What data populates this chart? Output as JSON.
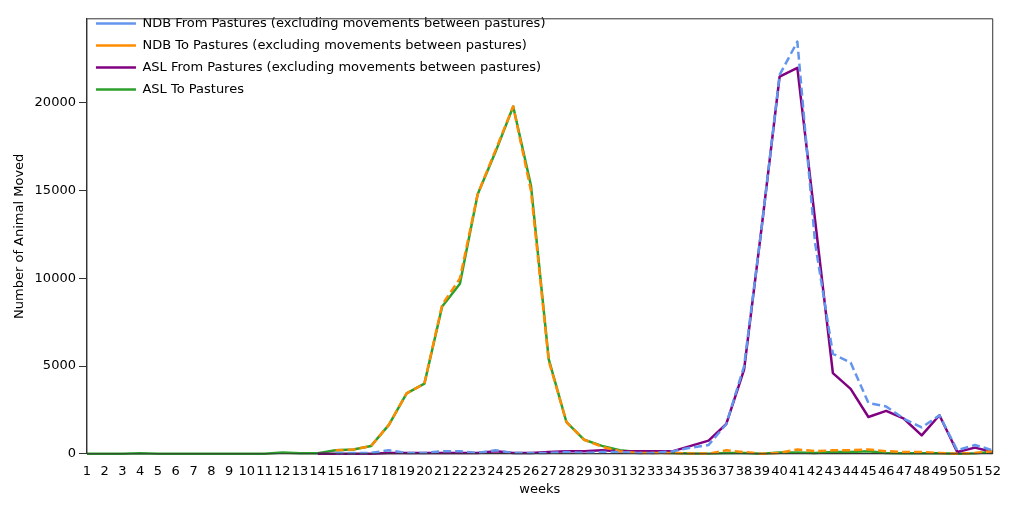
{
  "chart_data": {
    "type": "line",
    "xlabel": "weeks",
    "ylabel": "Number of Animal Moved",
    "x": [
      1,
      2,
      3,
      4,
      5,
      6,
      7,
      8,
      9,
      10,
      11,
      12,
      13,
      14,
      15,
      16,
      17,
      18,
      19,
      20,
      21,
      22,
      23,
      24,
      25,
      26,
      27,
      28,
      29,
      30,
      31,
      32,
      33,
      34,
      35,
      36,
      37,
      38,
      39,
      40,
      41,
      42,
      43,
      44,
      45,
      46,
      47,
      48,
      49,
      50,
      51,
      52
    ],
    "xlim": [
      1,
      52
    ],
    "xticks": [
      1,
      2,
      3,
      4,
      5,
      6,
      7,
      8,
      9,
      10,
      11,
      12,
      13,
      14,
      15,
      16,
      17,
      18,
      19,
      20,
      21,
      22,
      23,
      24,
      25,
      26,
      27,
      28,
      29,
      30,
      31,
      32,
      33,
      34,
      35,
      36,
      37,
      38,
      39,
      40,
      41,
      42,
      43,
      44,
      45,
      46,
      47,
      48,
      49,
      50,
      51,
      52
    ],
    "ylim": [
      0,
      24800
    ],
    "yticks": [
      0,
      5000,
      10000,
      15000,
      20000
    ],
    "grid": false,
    "legend": "top left",
    "series": [
      {
        "name": "NDB From Pastures (excluding movements between pastures)",
        "color": "#6495ed",
        "line_style": "dashed",
        "values": [
          null,
          null,
          null,
          null,
          null,
          null,
          null,
          null,
          null,
          null,
          null,
          null,
          null,
          null,
          50,
          50,
          50,
          200,
          50,
          50,
          150,
          150,
          50,
          200,
          50,
          50,
          50,
          100,
          50,
          100,
          100,
          50,
          50,
          150,
          350,
          500,
          1700,
          5000,
          13000,
          21600,
          23500,
          12000,
          5700,
          5200,
          2900,
          2700,
          2000,
          1500,
          2200,
          200,
          500,
          200
        ]
      },
      {
        "name": "NDB To Pastures (excluding movements between pastures)",
        "color": "#ff8c00",
        "line_style": "dashed",
        "values": [
          null,
          null,
          null,
          null,
          null,
          null,
          null,
          null,
          null,
          null,
          null,
          null,
          null,
          null,
          200,
          250,
          450,
          1650,
          3450,
          4000,
          8500,
          10000,
          14800,
          17300,
          19800,
          15000,
          5300,
          1800,
          800,
          400,
          150,
          50,
          50,
          50,
          20,
          10,
          200,
          100,
          0,
          50,
          250,
          150,
          200,
          200,
          250,
          150,
          100,
          100,
          50,
          0,
          50,
          150
        ]
      },
      {
        "name": "ASL From Pastures (excluding movements between pastures)",
        "color": "#800080",
        "line_style": "solid",
        "values": [
          null,
          null,
          null,
          null,
          null,
          null,
          null,
          null,
          null,
          null,
          null,
          null,
          null,
          0,
          0,
          0,
          0,
          50,
          50,
          50,
          50,
          50,
          50,
          150,
          50,
          50,
          100,
          150,
          150,
          200,
          150,
          150,
          150,
          150,
          450,
          750,
          1700,
          4800,
          13000,
          21500,
          22000,
          13300,
          4600,
          3700,
          2100,
          2450,
          2000,
          1050,
          2200,
          100,
          350,
          100
        ]
      },
      {
        "name": "ASL To Pastures",
        "color": "#2ca02c",
        "line_style": "solid",
        "values": [
          0,
          0,
          0,
          30,
          0,
          0,
          0,
          0,
          0,
          0,
          0,
          80,
          30,
          30,
          200,
          250,
          450,
          1650,
          3450,
          4000,
          8400,
          9700,
          14800,
          17200,
          19800,
          15300,
          5400,
          1800,
          800,
          450,
          200,
          100,
          80,
          50,
          20,
          10,
          50,
          50,
          0,
          80,
          80,
          50,
          100,
          100,
          150,
          50,
          30,
          30,
          30,
          0,
          30,
          100
        ]
      }
    ]
  }
}
